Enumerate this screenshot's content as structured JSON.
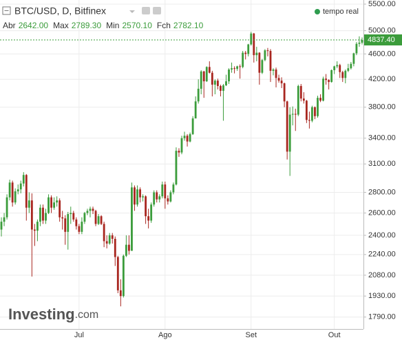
{
  "chart_data": {
    "type": "candlestick",
    "title": "BTC/USD, D, Bitfinex",
    "status": "tempo real",
    "ohlc_info": [
      {
        "name": "Abr",
        "value": 2642,
        "label": "2642.00"
      },
      {
        "name": "Max",
        "value": 2789.3,
        "label": "2789.30"
      },
      {
        "name": "Min",
        "value": 2570.1,
        "label": "2570.10"
      },
      {
        "name": "Fch",
        "value": 2782.1,
        "label": "2782.10"
      }
    ],
    "watermark": "Investing",
    "watermark_suffix": ".com",
    "categories": [
      null,
      null,
      null,
      null,
      null,
      null,
      null,
      null,
      null,
      null,
      null,
      null,
      null,
      null,
      null,
      null,
      null,
      null,
      null,
      null,
      null,
      null,
      null,
      null,
      null,
      null,
      null,
      null,
      "Jul",
      null,
      null,
      null,
      null,
      null,
      null,
      null,
      null,
      null,
      null,
      null,
      null,
      null,
      null,
      null,
      null,
      null,
      null,
      null,
      null,
      null,
      null,
      null,
      null,
      null,
      null,
      null,
      null,
      null,
      null,
      "Ago",
      null,
      null,
      null,
      null,
      null,
      null,
      null,
      null,
      null,
      null,
      null,
      null,
      null,
      null,
      null,
      null,
      null,
      null,
      null,
      null,
      null,
      null,
      null,
      null,
      null,
      null,
      null,
      null,
      null,
      null,
      "Set",
      null,
      null,
      null,
      null,
      null,
      null,
      null,
      null,
      null,
      null,
      null,
      null,
      null,
      null,
      null,
      null,
      null,
      null,
      null,
      null,
      null,
      null,
      null,
      null,
      null,
      null,
      null,
      null,
      null,
      "Out",
      null,
      null,
      null,
      null,
      null,
      null,
      null,
      null,
      null,
      null
    ],
    "open": [
      2450,
      2520,
      2560,
      2750,
      2900,
      2700,
      2810,
      2830,
      2890,
      2980,
      2650,
      2720,
      2450,
      2440,
      2520,
      2650,
      2530,
      2600,
      2750,
      2650,
      2700,
      2720,
      2560,
      2550,
      2430,
      2590,
      2600,
      2540,
      2480,
      2430,
      2520,
      2600,
      2620,
      2640,
      2620,
      2500,
      2570,
      2500,
      2350,
      2330,
      2400,
      2370,
      2220,
      1970,
      1930,
      2230,
      2320,
      2270,
      2850,
      2680,
      2830,
      2750,
      2760,
      2570,
      2530,
      2680,
      2800,
      2730,
      2760,
      2880,
      2740,
      2710,
      2800,
      2880,
      3250,
      3230,
      3400,
      3430,
      3360,
      3450,
      3650,
      3880,
      4060,
      4320,
      4170,
      4390,
      4300,
      4120,
      4180,
      4100,
      4030,
      4110,
      4170,
      4350,
      4370,
      4360,
      4400,
      4390,
      4620,
      4600,
      4760,
      4950,
      4580,
      4620,
      4300,
      4500,
      4660,
      4650,
      4330,
      4350,
      4220,
      4180,
      4140,
      3880,
      3240,
      3700,
      3710,
      3700,
      4100,
      3920,
      3890,
      3630,
      3620,
      3800,
      3680,
      3930,
      3890,
      4210,
      4190,
      4160,
      4340,
      4400,
      4420,
      4310,
      4220,
      4330,
      4370,
      4440,
      4610,
      4770,
      4790
    ],
    "high": [
      2560,
      2600,
      2780,
      2930,
      2920,
      2840,
      2880,
      2920,
      3010,
      2990,
      2800,
      2790,
      2500,
      2540,
      2680,
      2680,
      2640,
      2780,
      2770,
      2750,
      2760,
      2740,
      2620,
      2580,
      2610,
      2660,
      2620,
      2560,
      2500,
      2560,
      2610,
      2640,
      2660,
      2660,
      2630,
      2590,
      2580,
      2520,
      2400,
      2420,
      2420,
      2390,
      2230,
      2050,
      2240,
      2400,
      2400,
      2900,
      2870,
      2870,
      2850,
      2780,
      2770,
      2640,
      2700,
      2820,
      2820,
      2780,
      2910,
      2910,
      2770,
      2820,
      2900,
      3290,
      3280,
      3430,
      3480,
      3450,
      3470,
      3680,
      3950,
      4200,
      4340,
      4330,
      4400,
      4480,
      4330,
      4200,
      4210,
      4120,
      4130,
      4270,
      4370,
      4460,
      4400,
      4410,
      4430,
      4650,
      4650,
      4770,
      4980,
      4960,
      4720,
      4630,
      4520,
      4680,
      4700,
      4680,
      4370,
      4380,
      4270,
      4230,
      4150,
      3890,
      3800,
      3810,
      3780,
      4120,
      4130,
      4010,
      3900,
      3740,
      3820,
      3810,
      3960,
      3980,
      4240,
      4280,
      4200,
      4350,
      4410,
      4480,
      4440,
      4330,
      4350,
      4440,
      4470,
      4620,
      4800,
      4900,
      4880
    ],
    "low": [
      2390,
      2480,
      2540,
      2720,
      2660,
      2680,
      2780,
      2790,
      2860,
      2530,
      2600,
      2070,
      2310,
      2350,
      2480,
      2500,
      2500,
      2590,
      2600,
      2630,
      2660,
      2520,
      2450,
      2320,
      2280,
      2500,
      2520,
      2450,
      2410,
      2410,
      2500,
      2580,
      2560,
      2590,
      2480,
      2490,
      2490,
      2300,
      2290,
      2320,
      2330,
      2150,
      1950,
      1860,
      1920,
      2220,
      2240,
      2270,
      2620,
      2660,
      2700,
      2710,
      2500,
      2460,
      2510,
      2660,
      2700,
      2700,
      2740,
      2640,
      2680,
      2700,
      2780,
      2870,
      3180,
      3210,
      3370,
      3300,
      3350,
      3440,
      3650,
      3850,
      3980,
      3930,
      4160,
      4290,
      3950,
      3980,
      4050,
      3950,
      3620,
      4100,
      4130,
      4300,
      4290,
      4330,
      4210,
      4370,
      4510,
      4560,
      4740,
      4460,
      4480,
      4120,
      4280,
      4480,
      4560,
      4160,
      4260,
      4080,
      4150,
      4070,
      3800,
      3150,
      2970,
      3560,
      3490,
      3680,
      3880,
      3850,
      3590,
      3520,
      3600,
      3640,
      3660,
      3870,
      3880,
      4120,
      4050,
      4150,
      4280,
      4370,
      4220,
      4160,
      4140,
      4310,
      4350,
      4400,
      4580,
      4720,
      4760
    ],
    "close": [
      2520,
      2560,
      2750,
      2900,
      2700,
      2810,
      2830,
      2890,
      2980,
      2650,
      2720,
      2450,
      2440,
      2520,
      2650,
      2530,
      2600,
      2750,
      2650,
      2700,
      2720,
      2560,
      2550,
      2430,
      2590,
      2600,
      2540,
      2480,
      2430,
      2520,
      2600,
      2620,
      2640,
      2620,
      2500,
      2570,
      2500,
      2350,
      2330,
      2400,
      2370,
      2220,
      1970,
      1930,
      2230,
      2320,
      2270,
      2850,
      2680,
      2830,
      2750,
      2760,
      2570,
      2530,
      2680,
      2800,
      2730,
      2760,
      2880,
      2740,
      2710,
      2800,
      2880,
      3250,
      3230,
      3400,
      3430,
      3360,
      3450,
      3650,
      3880,
      4060,
      4320,
      4170,
      4390,
      4300,
      4120,
      4180,
      4100,
      4030,
      4110,
      4170,
      4350,
      4370,
      4360,
      4400,
      4390,
      4620,
      4600,
      4760,
      4950,
      4580,
      4620,
      4300,
      4500,
      4660,
      4650,
      4330,
      4350,
      4220,
      4180,
      4140,
      3880,
      3240,
      3700,
      3710,
      3700,
      4100,
      3920,
      3890,
      3630,
      3620,
      3800,
      3680,
      3930,
      3890,
      4210,
      4190,
      4160,
      4340,
      4400,
      4420,
      4310,
      4220,
      4330,
      4370,
      4440,
      4610,
      4770,
      4790,
      4837.4
    ],
    "last_price": {
      "value": 4837.4,
      "label": "4837.40"
    },
    "up_color": "#3b9c3b",
    "down_color": "#a8261f",
    "log_scale": true,
    "grid": true,
    "ylim": [
      1715,
      5582
    ],
    "yticks": [
      {
        "value": 1790,
        "label": "1790.00"
      },
      {
        "value": 1930,
        "label": "1930.00"
      },
      {
        "value": 2080,
        "label": "2080.00"
      },
      {
        "value": 2240,
        "label": "2240.00"
      },
      {
        "value": 2400,
        "label": "2400.00"
      },
      {
        "value": 2600,
        "label": "2600.00"
      },
      {
        "value": 2800,
        "label": "2800.00"
      },
      {
        "value": 3100,
        "label": "3100.00"
      },
      {
        "value": 3400,
        "label": "3400.00"
      },
      {
        "value": 3800,
        "label": "3800.00"
      },
      {
        "value": 4200,
        "label": "4200.00"
      },
      {
        "value": 4600,
        "label": "4600.00"
      },
      {
        "value": 5000,
        "label": "5000.00"
      },
      {
        "value": 5500,
        "label": "5500.00"
      }
    ]
  }
}
